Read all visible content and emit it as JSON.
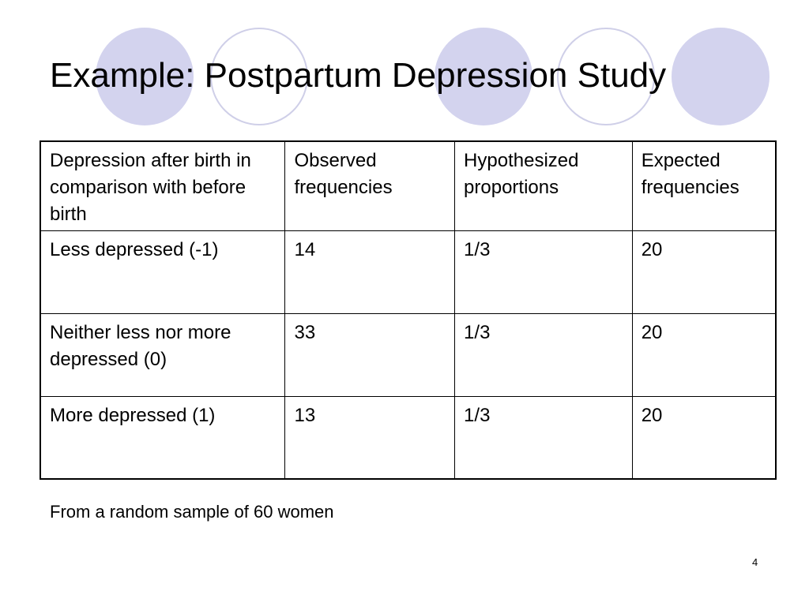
{
  "slide": {
    "title": "Example: Postpartum Depression Study",
    "caption": "From a random sample of 60 women",
    "page_number": "4",
    "colors": {
      "circle_fill": "#d3d3ee",
      "circle_ring": "#cfcfe8"
    }
  },
  "table": {
    "headers": [
      "Depression after birth in comparison with before birth",
      "Observed frequencies",
      "Hypothesized proportions",
      "Expected frequencies"
    ],
    "rows": [
      [
        "Less depressed (-1)",
        "14",
        "1/3",
        "20"
      ],
      [
        "Neither less nor more depressed (0)",
        "33",
        "1/3",
        "20"
      ],
      [
        "More depressed (1)",
        "13",
        "1/3",
        "20"
      ]
    ]
  }
}
